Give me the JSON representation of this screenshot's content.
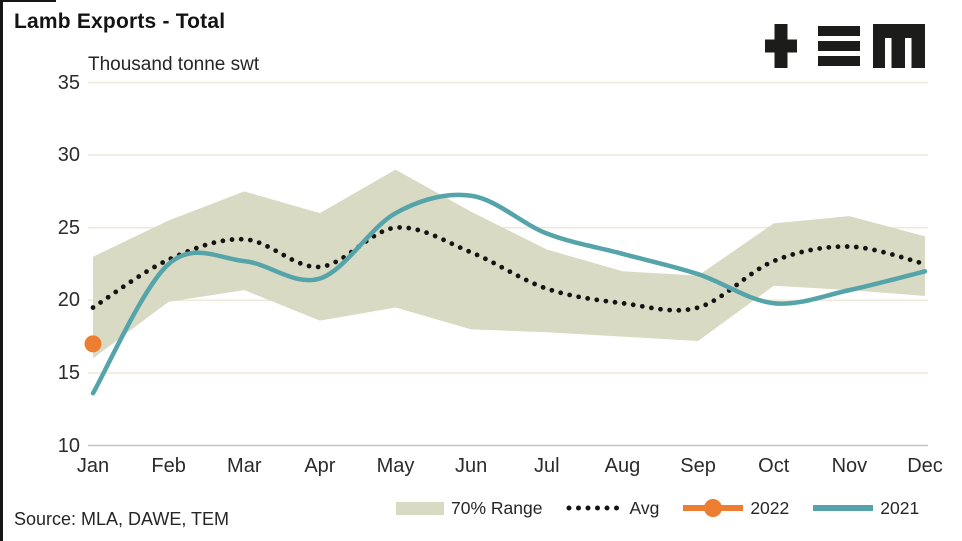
{
  "header": {
    "title": "Lamb Exports - Total",
    "subtitle": "Thousand tonne swt",
    "logo_name": "TEM"
  },
  "footer": {
    "source": "Source: MLA, DAWE, TEM"
  },
  "legend": [
    {
      "label": "70% Range",
      "type": "band"
    },
    {
      "label": "Avg",
      "type": "dotted"
    },
    {
      "label": "2022",
      "type": "line-with-dot"
    },
    {
      "label": "2021",
      "type": "line"
    }
  ],
  "colors": {
    "band": "#d8dac3",
    "avg": "#141414",
    "y2022": "#ed7d31",
    "y2021": "#55a4aa",
    "gridline": "#eeeadb",
    "baseline": "#c6c6c6",
    "text": "#262626",
    "logo": "#1c1c1a"
  },
  "chart_data": {
    "type": "line",
    "title": "Lamb Exports - Total",
    "ylabel": "Thousand tonne swt",
    "xlabel": "",
    "categories": [
      "Jan",
      "Feb",
      "Mar",
      "Apr",
      "May",
      "Jun",
      "Jul",
      "Aug",
      "Sep",
      "Oct",
      "Nov",
      "Dec"
    ],
    "ylim": [
      10,
      35
    ],
    "y_ticks": [
      35,
      30,
      25,
      20,
      15,
      10
    ],
    "grid": "horizontal",
    "legend_position": "bottom",
    "series": [
      {
        "name": "70% Range",
        "type": "band",
        "upper": [
          23.0,
          25.5,
          27.5,
          26.0,
          29.0,
          26.1,
          23.5,
          22.0,
          21.7,
          25.3,
          25.8,
          24.4
        ],
        "lower": [
          16.0,
          19.9,
          20.7,
          18.6,
          19.5,
          18.0,
          17.8,
          17.5,
          17.2,
          21.0,
          20.7,
          20.3
        ],
        "color": "#d8dac3"
      },
      {
        "name": "Avg",
        "type": "dotted-line",
        "values": [
          19.5,
          22.8,
          24.2,
          22.3,
          25.0,
          23.3,
          20.8,
          19.8,
          19.5,
          22.7,
          23.7,
          22.5
        ],
        "color": "#141414"
      },
      {
        "name": "2022",
        "type": "point",
        "values": [
          17.0,
          null,
          null,
          null,
          null,
          null,
          null,
          null,
          null,
          null,
          null,
          null
        ],
        "color": "#ed7d31"
      },
      {
        "name": "2021",
        "type": "line",
        "values": [
          13.6,
          22.5,
          22.7,
          21.5,
          26.0,
          27.2,
          24.6,
          23.2,
          21.8,
          19.8,
          20.7,
          22.0
        ],
        "color": "#55a4aa"
      }
    ]
  }
}
